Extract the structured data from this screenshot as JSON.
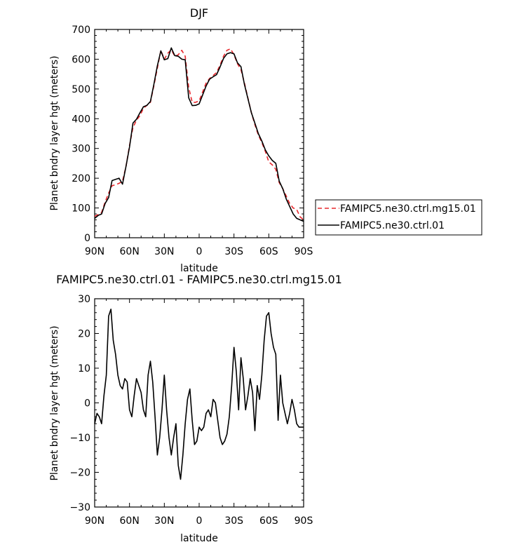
{
  "chart_data": [
    {
      "type": "line",
      "title": "DJF",
      "xlabel": "latitude",
      "ylabel": "Planet bndry layer hgt (meters)",
      "xlim": [
        -90,
        90
      ],
      "ylim": [
        0,
        700
      ],
      "x_ticks": [
        -90,
        -60,
        -30,
        0,
        30,
        60,
        90
      ],
      "x_tick_labels": [
        "90N",
        "60N",
        "30N",
        "0",
        "30S",
        "60S",
        "90S"
      ],
      "y_ticks": [
        0,
        100,
        200,
        300,
        400,
        500,
        600,
        700
      ],
      "y_tick_labels": [
        "0",
        "100",
        "200",
        "300",
        "400",
        "500",
        "600",
        "700"
      ],
      "grid": false,
      "legend_placement": "right",
      "series": [
        {
          "name": "FAMIPC5.ne30.ctrl.mg15.01",
          "color": "#e8282d",
          "dash": "dashed",
          "x": [
            -90,
            -87,
            -84,
            -81,
            -78,
            -75,
            -72,
            -69,
            -66,
            -63,
            -60,
            -57,
            -54,
            -51,
            -48,
            -45,
            -42,
            -39,
            -36,
            -33,
            -30,
            -27,
            -24,
            -21,
            -18,
            -15,
            -12,
            -9,
            -6,
            -3,
            0,
            3,
            6,
            9,
            12,
            15,
            18,
            21,
            24,
            27,
            30,
            33,
            36,
            39,
            42,
            45,
            48,
            51,
            54,
            57,
            60,
            63,
            66,
            69,
            72,
            75,
            78,
            81,
            84,
            87,
            90
          ],
          "y": [
            72,
            78,
            85,
            120,
            150,
            175,
            178,
            183,
            190,
            240,
            310,
            370,
            395,
            410,
            435,
            445,
            455,
            510,
            570,
            630,
            600,
            620,
            632,
            610,
            615,
            630,
            610,
            505,
            455,
            455,
            460,
            490,
            520,
            535,
            545,
            555,
            580,
            610,
            630,
            635,
            615,
            585,
            565,
            520,
            470,
            420,
            380,
            345,
            320,
            290,
            255,
            245,
            230,
            185,
            165,
            140,
            115,
            100,
            95,
            70,
            60
          ]
        },
        {
          "name": "FAMIPC5.ne30.ctrl.01",
          "color": "#000000",
          "dash": "solid",
          "x": [
            -90,
            -87,
            -84,
            -81,
            -78,
            -75,
            -72,
            -69,
            -66,
            -63,
            -60,
            -57,
            -54,
            -51,
            -48,
            -45,
            -42,
            -39,
            -36,
            -33,
            -30,
            -27,
            -24,
            -21,
            -18,
            -15,
            -12,
            -9,
            -6,
            -3,
            0,
            3,
            6,
            9,
            12,
            15,
            18,
            21,
            24,
            27,
            30,
            33,
            36,
            39,
            42,
            45,
            48,
            51,
            54,
            57,
            60,
            63,
            66,
            69,
            72,
            75,
            78,
            81,
            84,
            87,
            90
          ],
          "y": [
            65,
            75,
            80,
            115,
            135,
            192,
            196,
            200,
            180,
            240,
            305,
            385,
            398,
            420,
            440,
            445,
            458,
            515,
            578,
            628,
            598,
            602,
            638,
            612,
            610,
            600,
            598,
            470,
            444,
            445,
            450,
            480,
            510,
            533,
            541,
            548,
            574,
            603,
            618,
            622,
            618,
            588,
            575,
            515,
            468,
            420,
            385,
            350,
            325,
            295,
            275,
            260,
            250,
            190,
            165,
            130,
            105,
            80,
            65,
            60,
            55
          ]
        }
      ]
    },
    {
      "type": "line",
      "title": "FAMIPC5.ne30.ctrl.01 - FAMIPC5.ne30.ctrl.mg15.01",
      "xlabel": "latitude",
      "ylabel": "Planet bndry layer hgt (meters)",
      "xlim": [
        -90,
        90
      ],
      "ylim": [
        -30,
        30
      ],
      "x_ticks": [
        -90,
        -60,
        -30,
        0,
        30,
        60,
        90
      ],
      "x_tick_labels": [
        "90N",
        "60N",
        "30N",
        "0",
        "30S",
        "60S",
        "90S"
      ],
      "y_ticks": [
        -30,
        -20,
        -10,
        0,
        10,
        20,
        30
      ],
      "y_tick_labels": [
        "−30",
        "−20",
        "−10",
        "0",
        "10",
        "20",
        "30"
      ],
      "grid": false,
      "series": [
        {
          "color": "#000000",
          "x": [
            -90,
            -88,
            -86,
            -84,
            -82,
            -80,
            -78,
            -76,
            -74,
            -72,
            -70,
            -68,
            -66,
            -64,
            -62,
            -60,
            -58,
            -56,
            -54,
            -52,
            -50,
            -48,
            -46,
            -44,
            -42,
            -40,
            -38,
            -36,
            -34,
            -32,
            -30,
            -28,
            -26,
            -24,
            -22,
            -20,
            -18,
            -16,
            -14,
            -12,
            -10,
            -8,
            -6,
            -4,
            -2,
            0,
            2,
            4,
            6,
            8,
            10,
            12,
            14,
            16,
            18,
            20,
            22,
            24,
            26,
            28,
            30,
            32,
            34,
            36,
            38,
            40,
            42,
            44,
            46,
            48,
            50,
            52,
            54,
            56,
            58,
            60,
            62,
            64,
            66,
            68,
            70,
            72,
            74,
            76,
            78,
            80,
            82,
            84,
            86,
            88,
            90
          ],
          "y": [
            -6,
            -3,
            -4,
            -6,
            2,
            8,
            25,
            27,
            18,
            14,
            8,
            5,
            4,
            7,
            6,
            -2,
            -4,
            2,
            7,
            5,
            3,
            -2,
            -4,
            8,
            12,
            6,
            -4,
            -15,
            -10,
            -2,
            8,
            -2,
            -10,
            -15,
            -10,
            -6,
            -18,
            -22,
            -15,
            -6,
            1,
            4,
            -5,
            -12,
            -11,
            -7,
            -8,
            -7,
            -3,
            -2,
            -4,
            1,
            0,
            -5,
            -10,
            -12,
            -11,
            -9,
            -4,
            5,
            16,
            9,
            -2,
            13,
            7,
            -2,
            2,
            7,
            3,
            -8,
            5,
            1,
            8,
            18,
            25,
            26,
            20,
            16,
            14,
            -5,
            8,
            0,
            -3,
            -6,
            -3,
            1,
            -2,
            -6,
            -7,
            -7,
            -7
          ]
        }
      ]
    }
  ]
}
